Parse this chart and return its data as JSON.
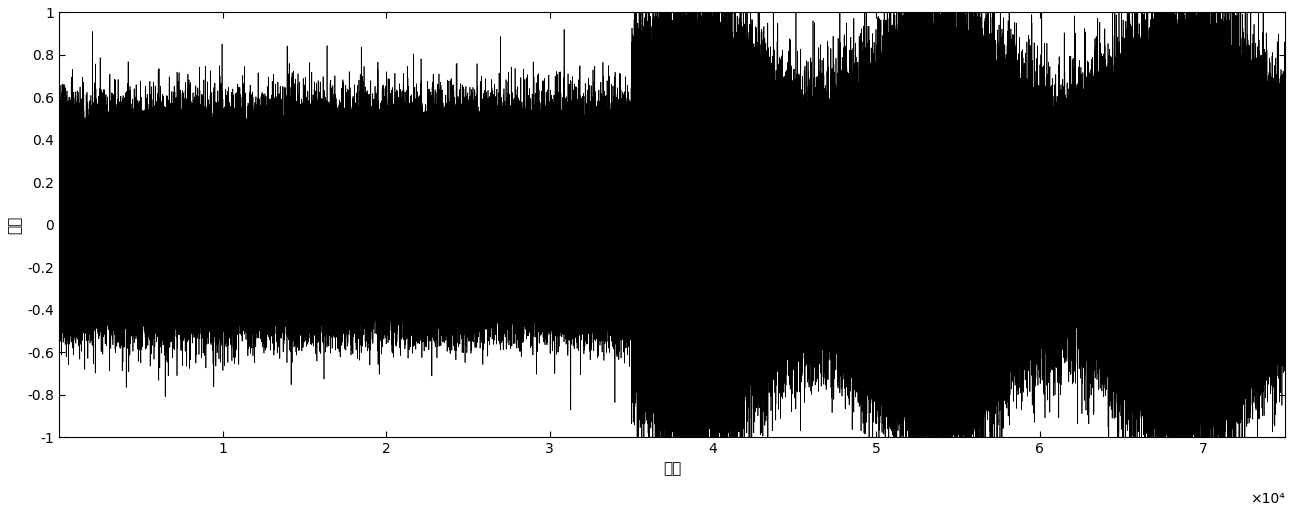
{
  "title": "",
  "xlabel": "样点",
  "ylabel": "幅度",
  "xlim": [
    0,
    75000
  ],
  "ylim": [
    -1,
    1
  ],
  "xticks": [
    10000,
    20000,
    30000,
    40000,
    50000,
    60000,
    70000
  ],
  "xtick_labels": [
    "1",
    "2",
    "3",
    "4",
    "5",
    "6",
    "7"
  ],
  "xscale_label": "×10⁴",
  "yticks": [
    -1,
    -0.8,
    -0.6,
    -0.4,
    -0.2,
    0,
    0.2,
    0.4,
    0.6,
    0.8,
    1
  ],
  "n_samples": 75000,
  "transition_point": 35000,
  "line_color": "#000000",
  "background_color": "#ffffff",
  "figsize": [
    12.92,
    5.09
  ],
  "dpi": 100,
  "xlabel_fontsize": 11,
  "ylabel_fontsize": 11,
  "tick_fontsize": 10,
  "seed": 42
}
